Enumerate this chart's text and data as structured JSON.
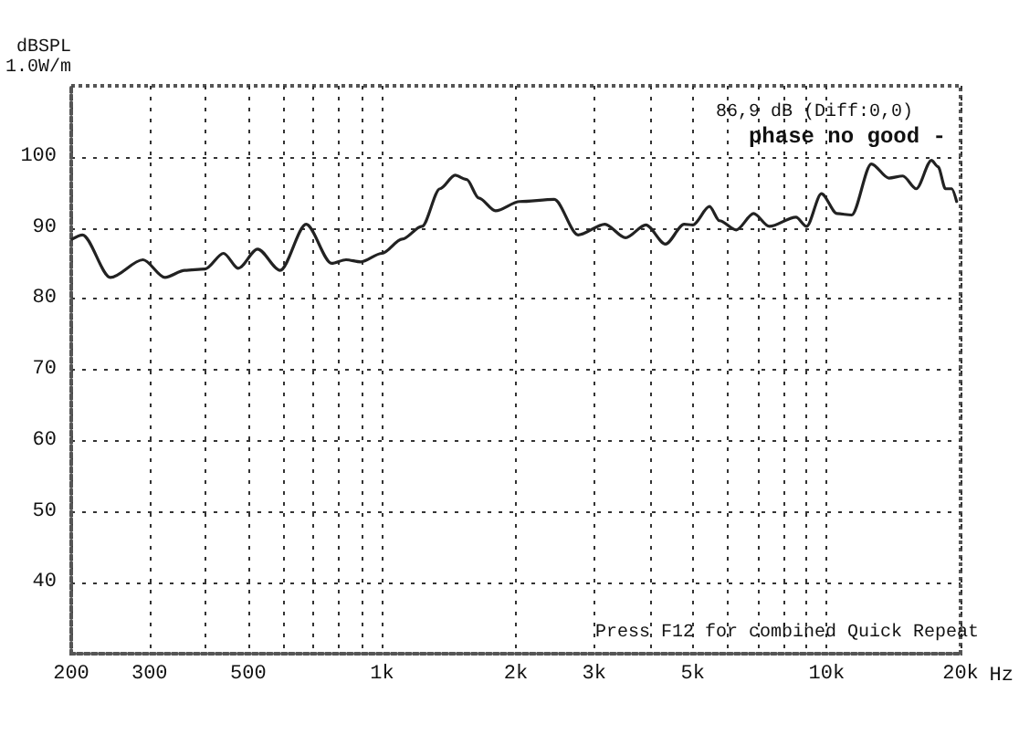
{
  "chart_data": {
    "type": "line",
    "ylabel": "dBSPL\n1.0W/m",
    "annotations": [
      "86,9 dB (Diff:0,0)",
      "phase no good -",
      "Press F12 for combined Quick Repeat"
    ],
    "log": "x",
    "grid": true,
    "marker": "none",
    "line_style": "solid",
    "xlim": [
      200,
      20000
    ],
    "xticks": [
      {
        "value": 200,
        "label": "200"
      },
      {
        "value": 300,
        "label": "300"
      },
      {
        "value": 400,
        "label": null
      },
      {
        "value": 500,
        "label": "500"
      },
      {
        "value": 600,
        "label": null
      },
      {
        "value": 700,
        "label": null
      },
      {
        "value": 800,
        "label": null
      },
      {
        "value": 900,
        "label": null
      },
      {
        "value": 1000,
        "label": "1k"
      },
      {
        "value": 2000,
        "label": "2k"
      },
      {
        "value": 3000,
        "label": "3k"
      },
      {
        "value": 4000,
        "label": null
      },
      {
        "value": 5000,
        "label": "5k"
      },
      {
        "value": 6000,
        "label": null
      },
      {
        "value": 7000,
        "label": null
      },
      {
        "value": 8000,
        "label": null
      },
      {
        "value": 9000,
        "label": null
      },
      {
        "value": 10000,
        "label": "10k"
      },
      {
        "value": 20000,
        "label": "20k"
      }
    ],
    "xlabel": "Hz",
    "ylim": [
      30,
      110
    ],
    "yticks": [
      40,
      50,
      60,
      70,
      80,
      90,
      100
    ],
    "series": [
      {
        "color": "#222222",
        "x": [
          201,
          212,
          245,
          290,
          325,
          360,
          400,
          440,
          475,
          525,
          590,
          675,
          770,
          830,
          895,
          1000,
          1110,
          1230,
          1350,
          1460,
          1550,
          1650,
          1800,
          2040,
          2440,
          2760,
          3170,
          3530,
          3920,
          4340,
          4780,
          5000,
          5450,
          5740,
          6260,
          6850,
          7430,
          8530,
          9010,
          9730,
          10550,
          11380,
          12600,
          13800,
          14830,
          15900,
          17200,
          17800,
          18500,
          19100,
          19600
        ],
        "values": [
          88.4,
          89,
          83,
          85.5,
          83,
          84,
          84.2,
          86.4,
          84.3,
          87,
          84,
          90.5,
          85,
          85.5,
          85.2,
          86.4,
          88.4,
          90.2,
          95.5,
          97.4,
          96.8,
          94.2,
          92.4,
          93.7,
          94,
          89,
          90.5,
          88.6,
          90.4,
          87.7,
          90.5,
          90.4,
          93,
          91,
          89.7,
          92,
          90.2,
          91.5,
          90.2,
          94.8,
          92,
          91.8,
          99,
          97,
          97.3,
          95.5,
          99.5,
          98.6,
          95.5,
          95.5,
          93.7
        ]
      }
    ]
  }
}
